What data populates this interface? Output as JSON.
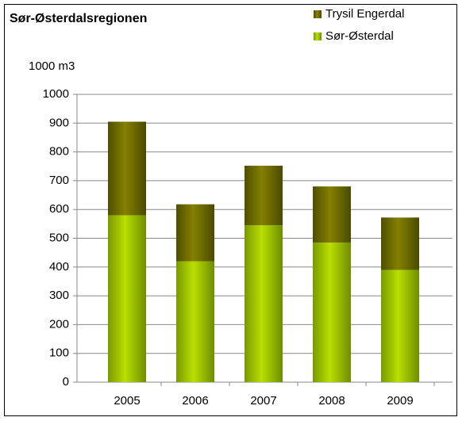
{
  "chart_data": {
    "type": "stacked-bar",
    "title": "Sør-Østerdalsregionen",
    "y_label": "1000 m3",
    "categories": [
      "2005",
      "2006",
      "2007",
      "2008",
      "2009"
    ],
    "series": [
      {
        "name": "Sør-Østerdal",
        "color": "#99cc00",
        "values": [
          580,
          420,
          545,
          485,
          390
        ]
      },
      {
        "name": "Trysil Engerdal",
        "color": "#6b6b00",
        "values": [
          325,
          198,
          207,
          195,
          182
        ]
      }
    ],
    "ylim": [
      0,
      1000
    ],
    "yticks": [
      0,
      100,
      200,
      300,
      400,
      500,
      600,
      700,
      800,
      900,
      1000
    ],
    "grid": true,
    "legend": "top-right"
  }
}
